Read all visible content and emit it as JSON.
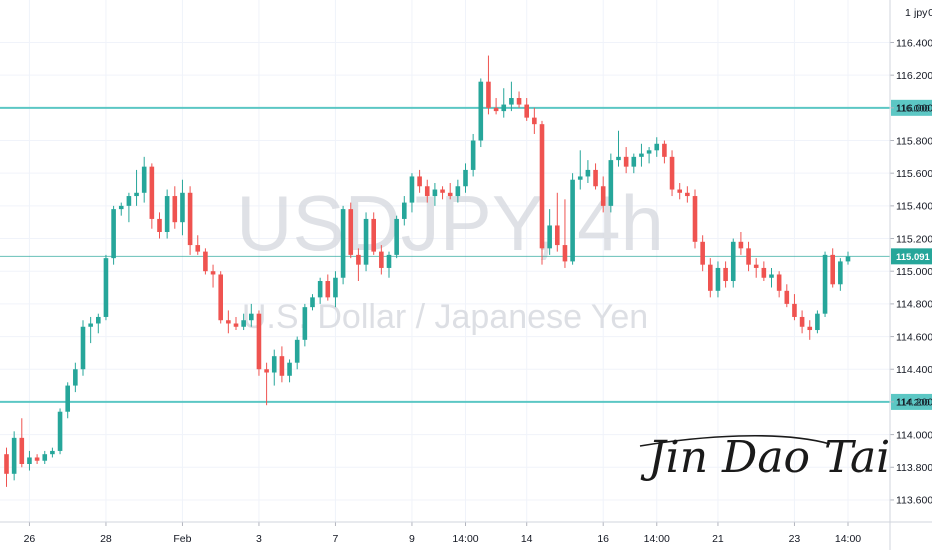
{
  "chart_data": {
    "type": "candlestick",
    "watermark_symbol": "USDJPY, 4h",
    "watermark_name": "U.S. Dollar / Japanese Yen",
    "currency_label": "JPY",
    "scale_mode_label": "0",
    "signature": "Jin Dao Tai",
    "ylim": [
      113.465,
      116.66
    ],
    "grid": true,
    "y_ticks": [
      "113.600",
      "113.800",
      "114.000",
      "114.200",
      "114.400",
      "114.600",
      "114.800",
      "115.000",
      "115.200",
      "115.400",
      "115.600",
      "115.800",
      "116.000",
      "116.200",
      "116.400"
    ],
    "x_ticks": [
      {
        "label": "26",
        "i": 3
      },
      {
        "label": "28",
        "i": 13
      },
      {
        "label": "Feb",
        "i": 23
      },
      {
        "label": "3",
        "i": 33
      },
      {
        "label": "7",
        "i": 43
      },
      {
        "label": "9",
        "i": 53
      },
      {
        "label": "14:00",
        "i": 60
      },
      {
        "label": "14",
        "i": 68
      },
      {
        "label": "16",
        "i": 78
      },
      {
        "label": "14:00",
        "i": 85
      },
      {
        "label": "21",
        "i": 93
      },
      {
        "label": "23",
        "i": 103
      },
      {
        "label": "14:00",
        "i": 110
      }
    ],
    "horizontal_levels": [
      {
        "value": 116.0,
        "label": "116.000",
        "color": "#5cc7c4"
      },
      {
        "value": 114.2,
        "label": "114.200",
        "color": "#5cc7c4"
      }
    ],
    "last_price": {
      "value": 115.091,
      "label": "115.091",
      "color": "#26a69a"
    },
    "up_color": "#26a69a",
    "down_color": "#ef5350",
    "candles": [
      [
        113.88,
        113.92,
        113.68,
        113.76
      ],
      [
        113.76,
        114.02,
        113.72,
        113.98
      ],
      [
        113.98,
        114.1,
        113.8,
        113.82
      ],
      [
        113.82,
        113.9,
        113.78,
        113.86
      ],
      [
        113.86,
        113.88,
        113.82,
        113.84
      ],
      [
        113.84,
        113.9,
        113.82,
        113.88
      ],
      [
        113.88,
        113.92,
        113.86,
        113.9
      ],
      [
        113.9,
        114.16,
        113.88,
        114.14
      ],
      [
        114.14,
        114.32,
        114.1,
        114.3
      ],
      [
        114.3,
        114.44,
        114.26,
        114.4
      ],
      [
        114.4,
        114.7,
        114.36,
        114.66
      ],
      [
        114.66,
        114.72,
        114.56,
        114.68
      ],
      [
        114.68,
        114.74,
        114.62,
        114.72
      ],
      [
        114.72,
        115.1,
        114.7,
        115.08
      ],
      [
        115.08,
        115.4,
        115.04,
        115.38
      ],
      [
        115.38,
        115.42,
        115.34,
        115.4
      ],
      [
        115.4,
        115.48,
        115.3,
        115.46
      ],
      [
        115.46,
        115.62,
        115.4,
        115.48
      ],
      [
        115.48,
        115.7,
        115.42,
        115.64
      ],
      [
        115.64,
        115.66,
        115.26,
        115.32
      ],
      [
        115.32,
        115.36,
        115.2,
        115.24
      ],
      [
        115.24,
        115.5,
        115.2,
        115.46
      ],
      [
        115.46,
        115.52,
        115.26,
        115.3
      ],
      [
        115.3,
        115.56,
        115.22,
        115.48
      ],
      [
        115.48,
        115.52,
        115.1,
        115.16
      ],
      [
        115.16,
        115.22,
        115.1,
        115.12
      ],
      [
        115.12,
        115.14,
        114.98,
        115.0
      ],
      [
        115.0,
        115.04,
        114.9,
        114.98
      ],
      [
        114.98,
        115.0,
        114.68,
        114.7
      ],
      [
        114.7,
        114.76,
        114.62,
        114.68
      ],
      [
        114.68,
        114.72,
        114.64,
        114.66
      ],
      [
        114.66,
        114.74,
        114.64,
        114.7
      ],
      [
        114.7,
        114.8,
        114.66,
        114.74
      ],
      [
        114.74,
        114.76,
        114.36,
        114.4
      ],
      [
        114.4,
        114.44,
        114.18,
        114.38
      ],
      [
        114.38,
        114.52,
        114.3,
        114.48
      ],
      [
        114.48,
        114.54,
        114.32,
        114.36
      ],
      [
        114.36,
        114.46,
        114.32,
        114.44
      ],
      [
        114.44,
        114.6,
        114.4,
        114.58
      ],
      [
        114.58,
        114.8,
        114.54,
        114.78
      ],
      [
        114.78,
        114.86,
        114.76,
        114.84
      ],
      [
        114.84,
        114.96,
        114.8,
        114.94
      ],
      [
        114.94,
        114.98,
        114.82,
        114.84
      ],
      [
        114.84,
        115.0,
        114.78,
        114.96
      ],
      [
        114.96,
        115.4,
        114.92,
        115.38
      ],
      [
        115.38,
        115.42,
        115.08,
        115.1
      ],
      [
        115.1,
        115.14,
        114.94,
        115.04
      ],
      [
        115.04,
        115.36,
        115.0,
        115.32
      ],
      [
        115.32,
        115.36,
        115.1,
        115.12
      ],
      [
        115.12,
        115.16,
        114.98,
        115.02
      ],
      [
        115.02,
        115.12,
        114.96,
        115.1
      ],
      [
        115.1,
        115.34,
        115.08,
        115.32
      ],
      [
        115.32,
        115.46,
        115.28,
        115.42
      ],
      [
        115.42,
        115.6,
        115.36,
        115.58
      ],
      [
        115.58,
        115.62,
        115.48,
        115.52
      ],
      [
        115.52,
        115.56,
        115.42,
        115.46
      ],
      [
        115.46,
        115.54,
        115.4,
        115.5
      ],
      [
        115.5,
        115.52,
        115.44,
        115.48
      ],
      [
        115.48,
        115.54,
        115.44,
        115.46
      ],
      [
        115.46,
        115.56,
        115.42,
        115.52
      ],
      [
        115.52,
        115.66,
        115.48,
        115.62
      ],
      [
        115.62,
        115.84,
        115.58,
        115.8
      ],
      [
        115.8,
        116.18,
        115.76,
        116.16
      ],
      [
        116.16,
        116.32,
        115.96,
        116.0
      ],
      [
        116.0,
        116.06,
        115.96,
        115.98
      ],
      [
        115.98,
        116.12,
        115.94,
        116.02
      ],
      [
        116.02,
        116.16,
        115.98,
        116.06
      ],
      [
        116.06,
        116.1,
        116.0,
        116.02
      ],
      [
        116.02,
        116.06,
        115.92,
        115.94
      ],
      [
        115.94,
        116.0,
        115.84,
        115.9
      ],
      [
        115.9,
        115.92,
        115.04,
        115.14
      ],
      [
        115.14,
        115.38,
        115.1,
        115.28
      ],
      [
        115.28,
        115.48,
        115.12,
        115.16
      ],
      [
        115.16,
        115.44,
        115.02,
        115.06
      ],
      [
        115.06,
        115.6,
        115.04,
        115.56
      ],
      [
        115.56,
        115.74,
        115.5,
        115.58
      ],
      [
        115.58,
        115.68,
        115.54,
        115.62
      ],
      [
        115.62,
        115.66,
        115.5,
        115.52
      ],
      [
        115.52,
        115.58,
        115.36,
        115.4
      ],
      [
        115.4,
        115.72,
        115.36,
        115.68
      ],
      [
        115.68,
        115.86,
        115.64,
        115.7
      ],
      [
        115.7,
        115.76,
        115.6,
        115.64
      ],
      [
        115.64,
        115.72,
        115.6,
        115.7
      ],
      [
        115.7,
        115.78,
        115.64,
        115.72
      ],
      [
        115.72,
        115.76,
        115.66,
        115.74
      ],
      [
        115.74,
        115.82,
        115.7,
        115.78
      ],
      [
        115.78,
        115.8,
        115.66,
        115.7
      ],
      [
        115.7,
        115.74,
        115.46,
        115.5
      ],
      [
        115.5,
        115.54,
        115.44,
        115.48
      ],
      [
        115.48,
        115.52,
        115.42,
        115.46
      ],
      [
        115.46,
        115.5,
        115.14,
        115.18
      ],
      [
        115.18,
        115.22,
        115.0,
        115.04
      ],
      [
        115.04,
        115.08,
        114.84,
        114.88
      ],
      [
        114.88,
        115.06,
        114.84,
        115.02
      ],
      [
        115.02,
        115.06,
        114.9,
        114.94
      ],
      [
        114.94,
        115.2,
        114.9,
        115.18
      ],
      [
        115.18,
        115.24,
        115.1,
        115.14
      ],
      [
        115.14,
        115.18,
        115.0,
        115.04
      ],
      [
        115.04,
        115.08,
        114.96,
        115.02
      ],
      [
        115.02,
        115.06,
        114.94,
        114.96
      ],
      [
        114.96,
        115.02,
        114.9,
        114.98
      ],
      [
        114.98,
        115.0,
        114.84,
        114.88
      ],
      [
        114.88,
        114.92,
        114.78,
        114.8
      ],
      [
        114.8,
        114.86,
        114.7,
        114.72
      ],
      [
        114.72,
        114.76,
        114.62,
        114.66
      ],
      [
        114.66,
        114.7,
        114.58,
        114.64
      ],
      [
        114.64,
        114.76,
        114.62,
        114.74
      ],
      [
        114.74,
        115.12,
        114.72,
        115.1
      ],
      [
        115.1,
        115.14,
        114.9,
        114.92
      ],
      [
        114.92,
        115.08,
        114.88,
        115.06
      ],
      [
        115.06,
        115.12,
        115.04,
        115.09
      ]
    ]
  }
}
